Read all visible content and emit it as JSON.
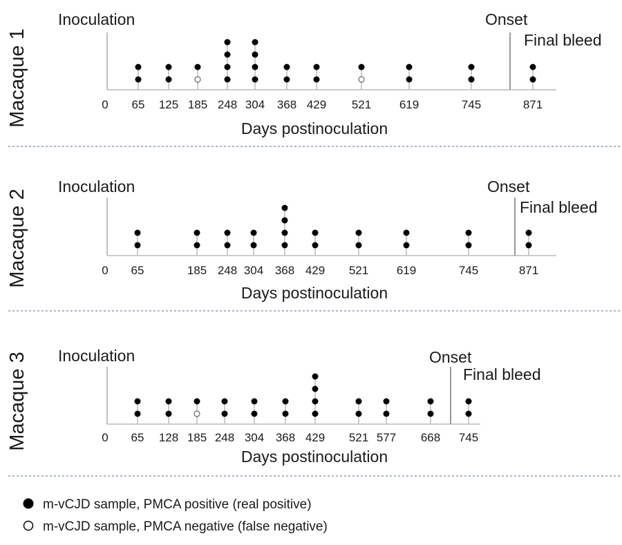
{
  "chart_data": [
    {
      "type": "scatter",
      "panel_label": "Macaque 1",
      "xlabel": "Days postinoculation",
      "start_label": "Inoculation",
      "onset_label": "Onset",
      "final_label": "Final bleed",
      "zero_tick": "0",
      "onset_day": 835,
      "samples": [
        {
          "day": 65,
          "positive": 2,
          "negative": 0
        },
        {
          "day": 125,
          "positive": 2,
          "negative": 0
        },
        {
          "day": 185,
          "positive": 1,
          "negative": 1
        },
        {
          "day": 248,
          "positive": 4,
          "negative": 0
        },
        {
          "day": 304,
          "positive": 4,
          "negative": 0
        },
        {
          "day": 368,
          "positive": 2,
          "negative": 0
        },
        {
          "day": 429,
          "positive": 2,
          "negative": 0
        },
        {
          "day": 521,
          "positive": 1,
          "negative": 1
        },
        {
          "day": 619,
          "positive": 2,
          "negative": 0
        },
        {
          "day": 745,
          "positive": 2,
          "negative": 0
        },
        {
          "day": 871,
          "positive": 2,
          "negative": 0
        }
      ]
    },
    {
      "type": "scatter",
      "panel_label": "Macaque 2",
      "xlabel": "Days postinoculation",
      "start_label": "Inoculation",
      "onset_label": "Onset",
      "final_label": "Final bleed",
      "zero_tick": "0",
      "onset_day": 835,
      "samples": [
        {
          "day": 65,
          "positive": 2,
          "negative": 0
        },
        {
          "day": 185,
          "positive": 2,
          "negative": 0
        },
        {
          "day": 248,
          "positive": 2,
          "negative": 0
        },
        {
          "day": 304,
          "positive": 2,
          "negative": 0
        },
        {
          "day": 368,
          "positive": 4,
          "negative": 0
        },
        {
          "day": 429,
          "positive": 2,
          "negative": 0
        },
        {
          "day": 521,
          "positive": 2,
          "negative": 0
        },
        {
          "day": 619,
          "positive": 2,
          "negative": 0
        },
        {
          "day": 745,
          "positive": 2,
          "negative": 0
        },
        {
          "day": 871,
          "positive": 2,
          "negative": 0
        }
      ]
    },
    {
      "type": "scatter",
      "panel_label": "Macaque 3",
      "xlabel": "Days postinoculation",
      "start_label": "Inoculation",
      "onset_label": "Onset",
      "final_label": "Final bleed",
      "zero_tick": "0",
      "onset_day": 710,
      "samples": [
        {
          "day": 65,
          "positive": 2,
          "negative": 0
        },
        {
          "day": 128,
          "positive": 2,
          "negative": 0
        },
        {
          "day": 185,
          "positive": 1,
          "negative": 1
        },
        {
          "day": 248,
          "positive": 2,
          "negative": 0
        },
        {
          "day": 304,
          "positive": 2,
          "negative": 0
        },
        {
          "day": 368,
          "positive": 2,
          "negative": 0
        },
        {
          "day": 429,
          "positive": 4,
          "negative": 0
        },
        {
          "day": 521,
          "positive": 2,
          "negative": 0
        },
        {
          "day": 577,
          "positive": 2,
          "negative": 0
        },
        {
          "day": 668,
          "positive": 2,
          "negative": 0
        },
        {
          "day": 745,
          "positive": 2,
          "negative": 0
        }
      ]
    }
  ],
  "legend": {
    "positive": "m-vCJD sample, PMCA positive (real positive)",
    "negative": "m-vCJD sample, PMCA negative (false negative)"
  }
}
